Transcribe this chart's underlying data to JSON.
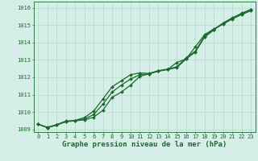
{
  "xlabel": "Graphe pression niveau de la mer (hPa)",
  "xlim_min": -0.5,
  "xlim_max": 23.5,
  "ylim_min": 1008.85,
  "ylim_max": 1016.35,
  "yticks": [
    1009,
    1010,
    1011,
    1012,
    1013,
    1014,
    1015,
    1016
  ],
  "xticks": [
    0,
    1,
    2,
    3,
    4,
    5,
    6,
    7,
    8,
    9,
    10,
    11,
    12,
    13,
    14,
    15,
    16,
    17,
    18,
    19,
    20,
    21,
    22,
    23
  ],
  "background_color": "#d6eee8",
  "grid_color": "#b8d8ce",
  "line_color": "#1a6b2a",
  "line1": [
    1009.3,
    1009.1,
    1009.25,
    1009.45,
    1009.5,
    1009.55,
    1009.7,
    1010.1,
    1010.85,
    1011.15,
    1011.55,
    1012.05,
    1012.2,
    1012.35,
    1012.45,
    1012.85,
    1013.05,
    1013.75,
    1014.45,
    1014.78,
    1015.05,
    1015.35,
    1015.6,
    1015.82
  ],
  "line2": [
    1009.3,
    1009.1,
    1009.25,
    1009.45,
    1009.5,
    1009.6,
    1009.85,
    1010.45,
    1011.15,
    1011.55,
    1011.9,
    1012.15,
    1012.2,
    1012.35,
    1012.45,
    1012.55,
    1013.05,
    1013.45,
    1014.3,
    1014.72,
    1015.1,
    1015.4,
    1015.68,
    1015.9
  ],
  "line3": [
    1009.3,
    1009.12,
    1009.28,
    1009.48,
    1009.52,
    1009.68,
    1010.05,
    1010.75,
    1011.45,
    1011.8,
    1012.15,
    1012.25,
    1012.22,
    1012.38,
    1012.47,
    1012.6,
    1013.12,
    1013.5,
    1014.38,
    1014.75,
    1015.12,
    1015.42,
    1015.65,
    1015.88
  ],
  "line_width": 0.9,
  "marker": "D",
  "marker_size": 2.0,
  "tick_fontsize": 5.0,
  "label_fontsize": 6.5,
  "label_fontweight": "bold",
  "fig_width": 3.2,
  "fig_height": 2.0,
  "dpi": 100
}
